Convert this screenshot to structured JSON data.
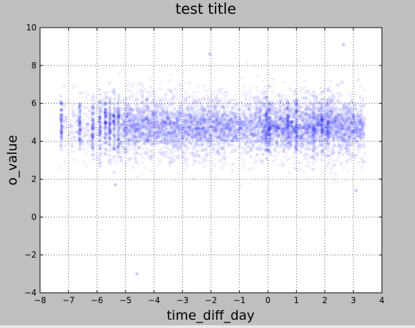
{
  "chart_data": {
    "type": "scatter",
    "title": "test title",
    "xlabel": "time_diff_day",
    "ylabel": "o_value",
    "xlim": [
      -8,
      4
    ],
    "ylim": [
      -4,
      10
    ],
    "xticks": [
      -8,
      -7,
      -6,
      -5,
      -4,
      -3,
      -2,
      -1,
      0,
      1,
      2,
      3,
      4
    ],
    "yticks": [
      -4,
      -2,
      0,
      2,
      4,
      6,
      8,
      10
    ],
    "xtick_labels": [
      "−8",
      "−7",
      "−6",
      "−5",
      "−4",
      "−3",
      "−2",
      "−1",
      "0",
      "1",
      "2",
      "3",
      "4"
    ],
    "ytick_labels": [
      "−4",
      "−2",
      "0",
      "2",
      "4",
      "6",
      "8",
      "10"
    ],
    "grid": true,
    "point_color": "#0000ff",
    "point_opacity": 0.06,
    "point_cloud": {
      "x_range": [
        -7.3,
        3.4
      ],
      "y_center": 4.8,
      "y_spread": 0.9,
      "dense_columns": [
        -7.25,
        -6.6,
        -6.15,
        -5.9,
        -5.7,
        -5.55,
        -5.4,
        -5.25,
        -0.05,
        0.05,
        0.7,
        1.0,
        1.6,
        1.9,
        2.1
      ],
      "outliers": [
        {
          "x": -4.6,
          "y": -3.0
        },
        {
          "x": 2.65,
          "y": 9.1
        },
        {
          "x": -2.05,
          "y": 8.6
        },
        {
          "x": 3.1,
          "y": 1.4
        },
        {
          "x": -5.35,
          "y": 1.7
        }
      ]
    }
  }
}
